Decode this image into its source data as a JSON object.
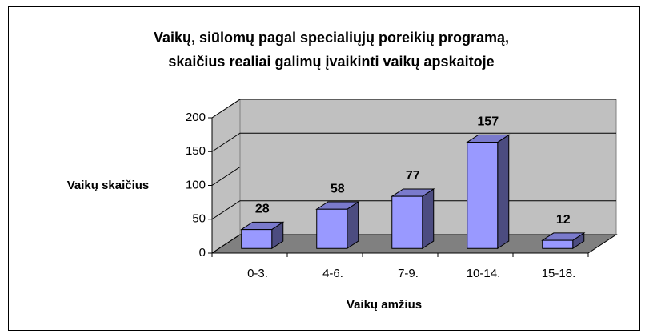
{
  "chart_data": {
    "type": "bar3d",
    "title": [
      "Vaikų, siūlomų pagal specialiųjų poreikių programą,",
      "skaičius realiai galimų įvaikinti vaikų apskaitoje"
    ],
    "y_label": "Vaikų skaičius",
    "x_label": "Vaikų amžius",
    "categories": [
      "0-3.",
      "4-6.",
      "7-9.",
      "10-14.",
      "15-18."
    ],
    "values": [
      28,
      58,
      77,
      157,
      12
    ],
    "color": "#9999ff",
    "ylim": [
      0,
      200
    ],
    "yticks": [
      0,
      50,
      100,
      150,
      200
    ],
    "grid": true
  }
}
